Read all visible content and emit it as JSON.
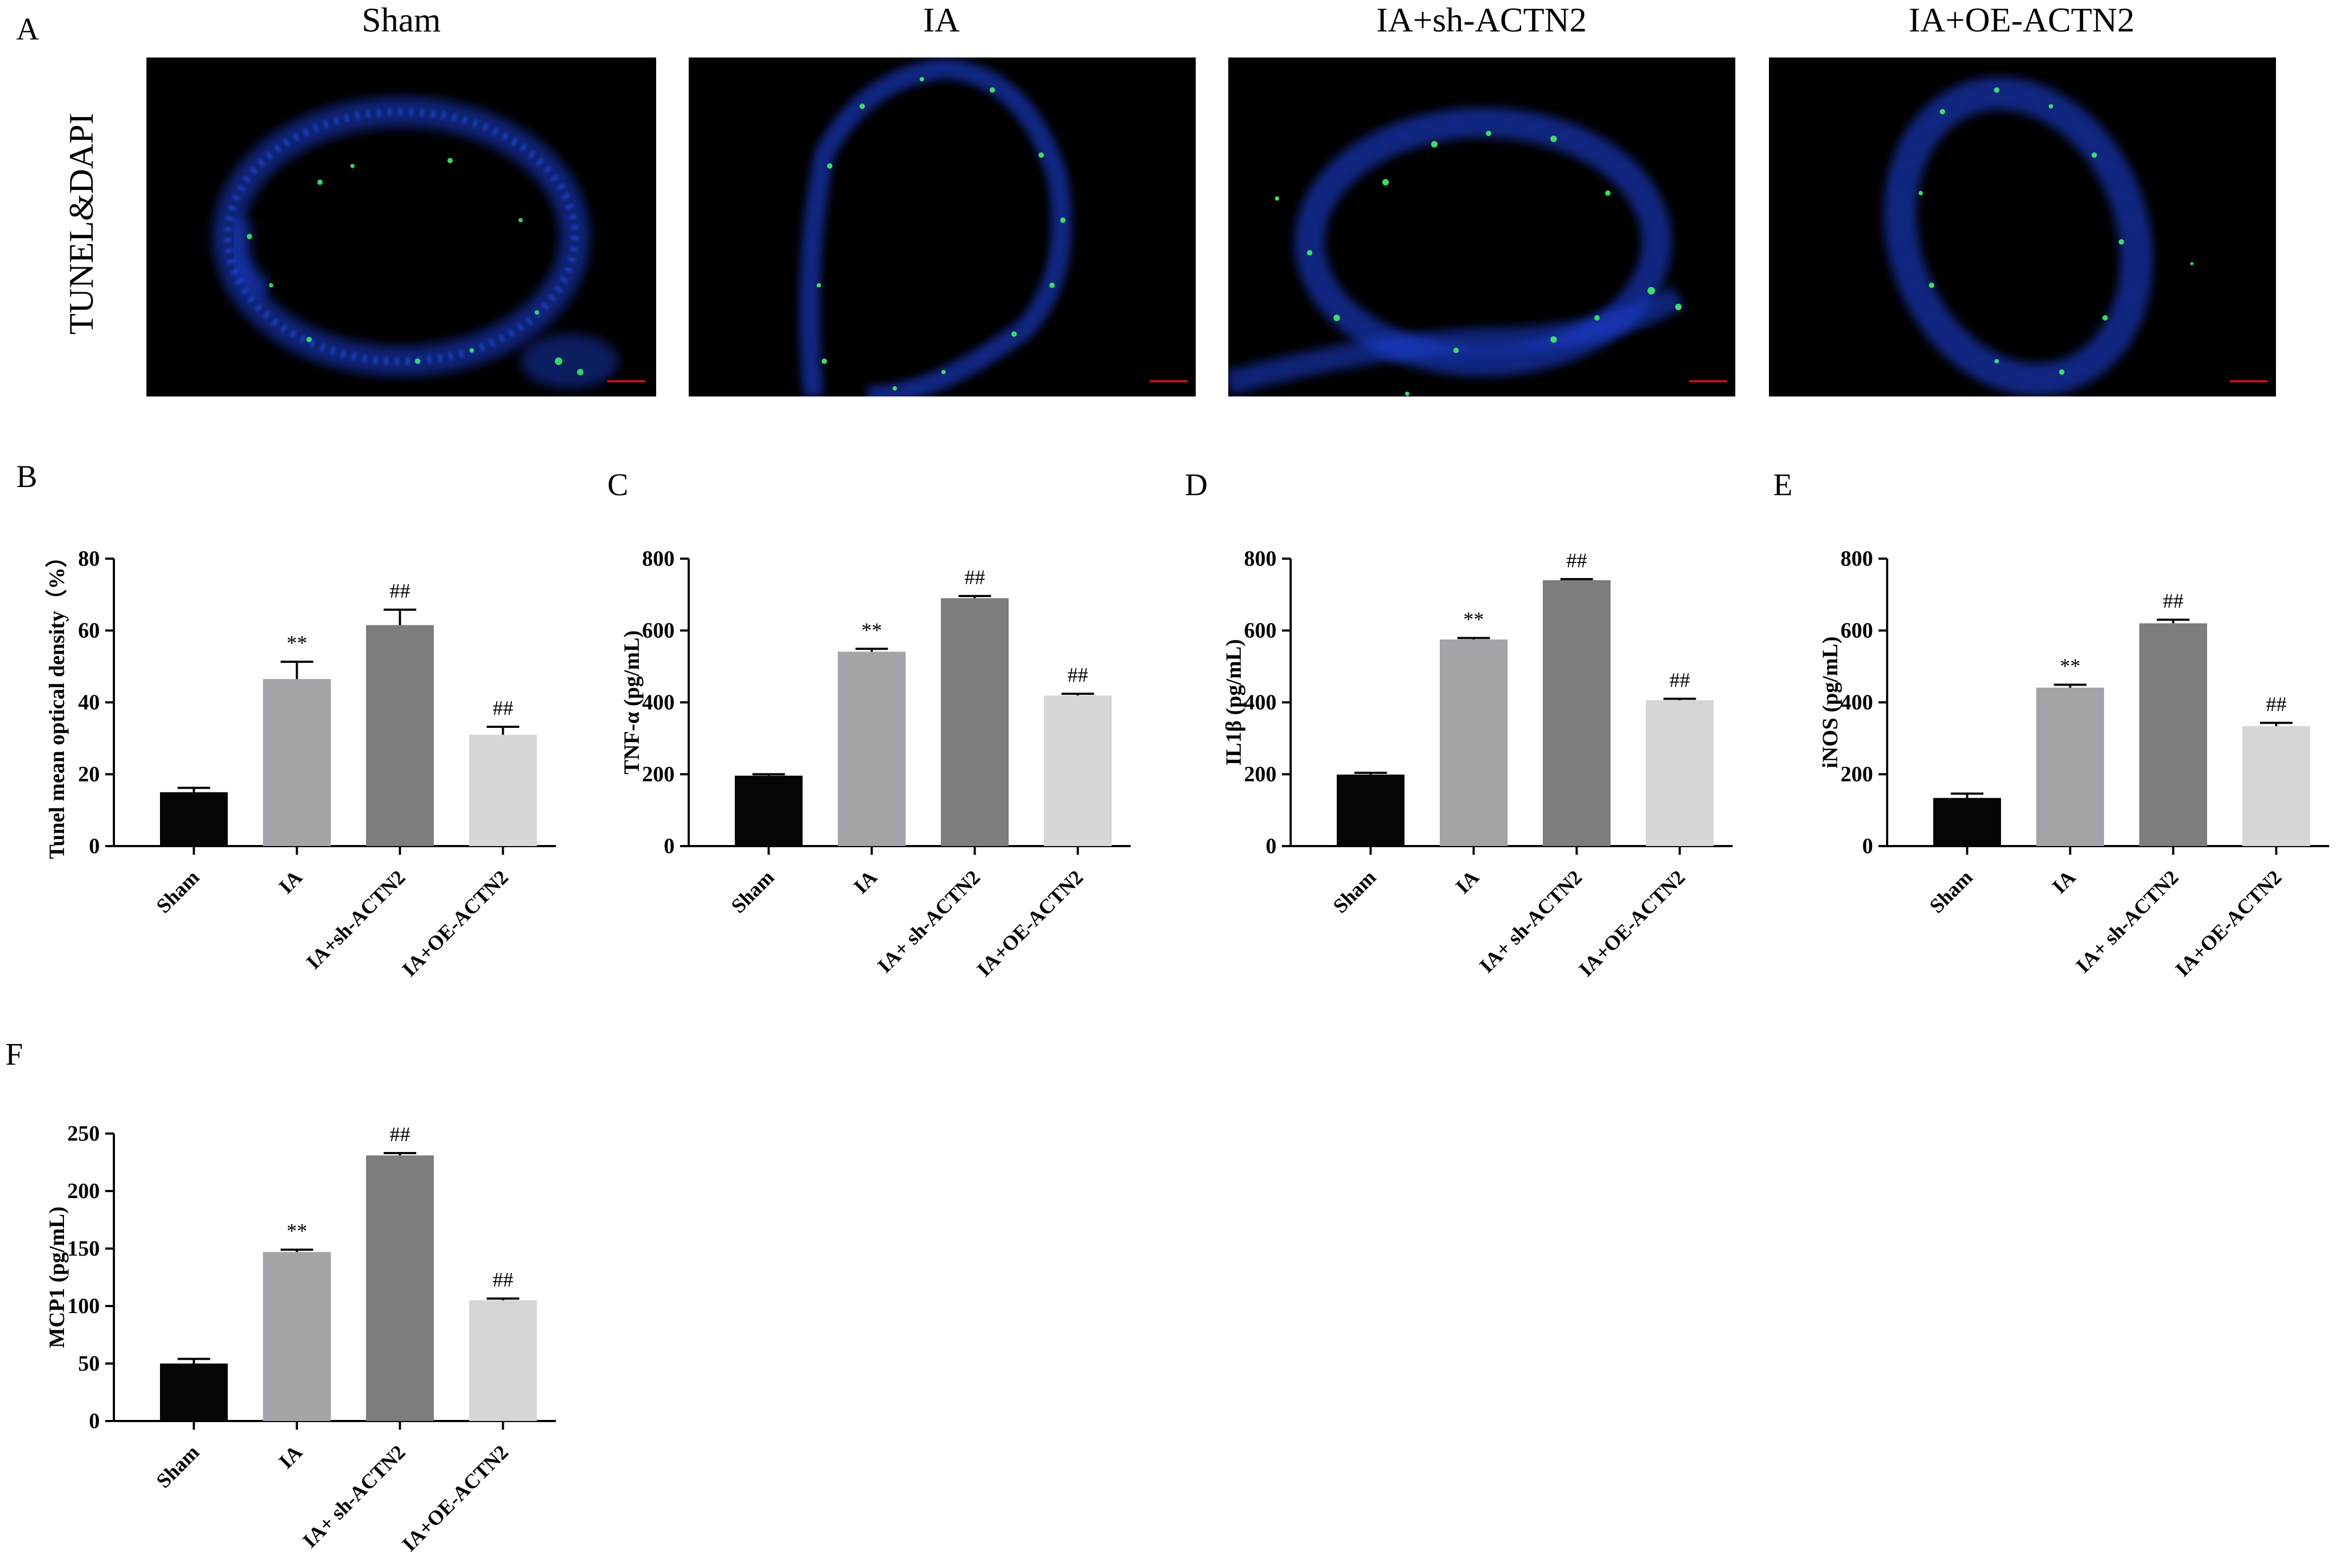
{
  "panel_A": {
    "letter": "A",
    "ylabel": "TUNEL&DAPI",
    "titles": [
      "Sham",
      "IA",
      "IA+sh-ACTN2",
      "IA+OE-ACTN2"
    ]
  },
  "colors": {
    "Sham": "#050505",
    "IA": "#a3a3a8",
    "sh": "#7d7d7d",
    "OE": "#d6d6d6",
    "dapi": "#1b3fd6",
    "tunel": "#3ee86a",
    "scalebar": "#cc1111"
  },
  "chart_data": [
    {
      "id": "B",
      "letter": "B",
      "type": "bar",
      "categories": [
        "Sham",
        "IA",
        "IA+sh-ACTN2",
        "IA+OE-ACTN2"
      ],
      "values": [
        15,
        46.5,
        61.5,
        31
      ],
      "errors": [
        1.2,
        4.8,
        4.3,
        2.2
      ],
      "annotations": [
        "",
        "**",
        "##",
        "##"
      ],
      "ylabel": "Tunel mean optical density（%）",
      "ylim": [
        0,
        80
      ],
      "yticks": [
        0,
        20,
        40,
        60,
        80
      ]
    },
    {
      "id": "C",
      "letter": "C",
      "type": "bar",
      "categories": [
        "Sham",
        "IA",
        "IA+ sh-ACTN2",
        "IA+OE-ACTN2"
      ],
      "values": [
        196,
        541,
        690,
        419
      ],
      "errors": [
        4,
        8,
        6,
        5
      ],
      "annotations": [
        "",
        "**",
        "##",
        "##"
      ],
      "ylabel": "TNF-α (pg/mL)",
      "ylim": [
        0,
        800
      ],
      "yticks": [
        0,
        200,
        400,
        600,
        800
      ]
    },
    {
      "id": "D",
      "letter": "D",
      "type": "bar",
      "categories": [
        "Sham",
        "IA",
        "IA+ sh-ACTN2",
        "IA+OE-ACTN2"
      ],
      "values": [
        199,
        575,
        740,
        406
      ],
      "errors": [
        5,
        4,
        3,
        4
      ],
      "annotations": [
        "",
        "**",
        "##",
        "##"
      ],
      "ylabel": "IL1β (pg/mL)",
      "ylim": [
        0,
        800
      ],
      "yticks": [
        0,
        200,
        400,
        600,
        800
      ]
    },
    {
      "id": "E",
      "letter": "E",
      "type": "bar",
      "categories": [
        "Sham",
        "IA",
        "IA+ sh-ACTN2",
        "IA+OE-ACTN2"
      ],
      "values": [
        134,
        441,
        620,
        334
      ],
      "errors": [
        12,
        8,
        10,
        9
      ],
      "annotations": [
        "",
        "**",
        "##",
        "##"
      ],
      "ylabel": "iNOS (pg/mL)",
      "ylim": [
        0,
        800
      ],
      "yticks": [
        0,
        200,
        400,
        600,
        800
      ]
    },
    {
      "id": "F",
      "letter": "F",
      "type": "bar",
      "categories": [
        "Sham",
        "IA",
        "IA+ sh-ACTN2",
        "IA+OE-ACTN2"
      ],
      "values": [
        50,
        147,
        231,
        105
      ],
      "errors": [
        4,
        2,
        2,
        1.5
      ],
      "annotations": [
        "",
        "**",
        "##",
        "##"
      ],
      "ylabel": "MCP1 (pg/mL)",
      "ylim": [
        0,
        250
      ],
      "yticks": [
        0,
        50,
        100,
        150,
        200,
        250
      ]
    }
  ]
}
